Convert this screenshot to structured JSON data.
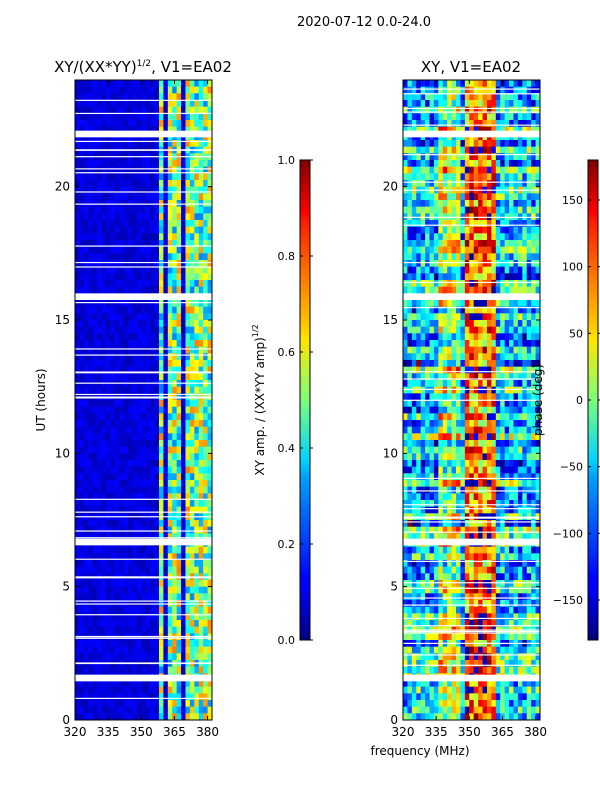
{
  "figure": {
    "suptitle": "2020-07-12 0.0-24.0",
    "xlabel_shared": "frequency (MHz)"
  },
  "chart_data": [
    {
      "type": "heatmap",
      "title": "XY/(XX*YY)^(1/2), V1=EA02",
      "title_main": "XY/(XX*YY)",
      "title_sup": "1/2",
      "title_rest": ", V1=EA02",
      "xlabel": "frequency (MHz)",
      "ylabel": "UT (hours)",
      "xlim": [
        320,
        382
      ],
      "ylim": [
        0,
        24
      ],
      "xticks": [
        320,
        335,
        350,
        365,
        380
      ],
      "yticks": [
        0,
        5,
        10,
        15,
        20
      ],
      "colorbar": {
        "label": "XY amp. / (XX*YY amp)^(1/2)",
        "label_main": "XY amp. / (XX*YY amp)",
        "label_sup": "1/2",
        "range": [
          0.0,
          1.0
        ],
        "ticks": [
          "0.0",
          "0.2",
          "0.4",
          "0.6",
          "0.8",
          "1.0"
        ],
        "tick_values": [
          0.0,
          0.2,
          0.4,
          0.6,
          0.8,
          1.0
        ]
      },
      "gaps_ut_hours": [
        [
          1.45,
          1.7
        ],
        [
          6.55,
          6.8
        ],
        [
          15.75,
          16.0
        ],
        [
          21.85,
          22.1
        ]
      ]
    },
    {
      "type": "heatmap",
      "title": "XY, V1=EA02",
      "xlabel": "frequency (MHz)",
      "ylabel": "",
      "xlim": [
        320,
        382
      ],
      "ylim": [
        0,
        24
      ],
      "xticks": [
        320,
        335,
        350,
        365,
        380
      ],
      "yticks": [
        0,
        5,
        10,
        15,
        20
      ],
      "colorbar": {
        "label": "phase (deg)",
        "range": [
          -180,
          180
        ],
        "ticks": [
          "−150",
          "−100",
          "−50",
          "0",
          "50",
          "100",
          "150"
        ],
        "tick_values": [
          -150,
          -100,
          -50,
          0,
          50,
          100,
          150
        ]
      },
      "gaps_ut_hours": [
        [
          1.45,
          1.7
        ],
        [
          6.55,
          6.8
        ],
        [
          15.75,
          16.0
        ],
        [
          21.85,
          22.1
        ]
      ]
    }
  ]
}
